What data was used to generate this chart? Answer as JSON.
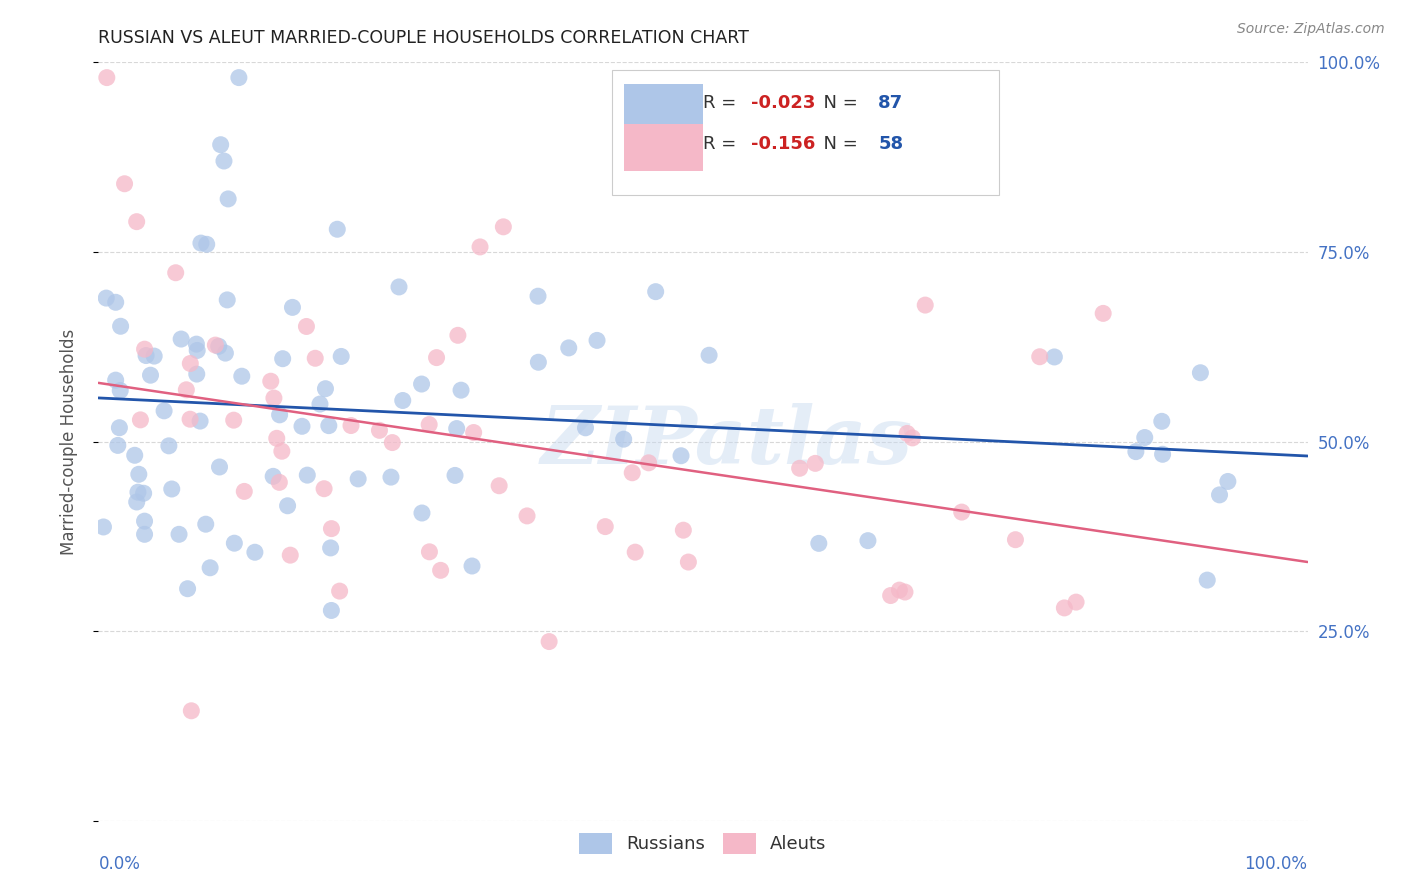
{
  "title": "RUSSIAN VS ALEUT MARRIED-COUPLE HOUSEHOLDS CORRELATION CHART",
  "source": "Source: ZipAtlas.com",
  "ylabel": "Married-couple Households",
  "watermark": "ZIPatlas",
  "russian_R": -0.023,
  "russian_N": 87,
  "aleut_R": -0.156,
  "aleut_N": 58,
  "russian_color": "#aec6e8",
  "aleut_color": "#f5b8c8",
  "russian_line_color": "#2255aa",
  "aleut_line_color": "#e06080",
  "background_color": "#ffffff",
  "grid_color": "#d8d8d8",
  "tick_color": "#4472c4",
  "title_color": "#222222",
  "source_color": "#888888",
  "ylabel_color": "#555555",
  "legend_r_color": "#cc0000",
  "legend_n_color": "#2255aa",
  "xlim": [
    0.0,
    1.0
  ],
  "ylim": [
    0.0,
    1.0
  ],
  "ytick_positions": [
    0.0,
    0.25,
    0.5,
    0.75,
    1.0
  ],
  "ytick_labels": [
    "",
    "25.0%",
    "50.0%",
    "75.0%",
    "100.0%"
  ],
  "xtick_positions": [
    0.0,
    0.25,
    0.5,
    0.75,
    1.0
  ],
  "seed": 123
}
